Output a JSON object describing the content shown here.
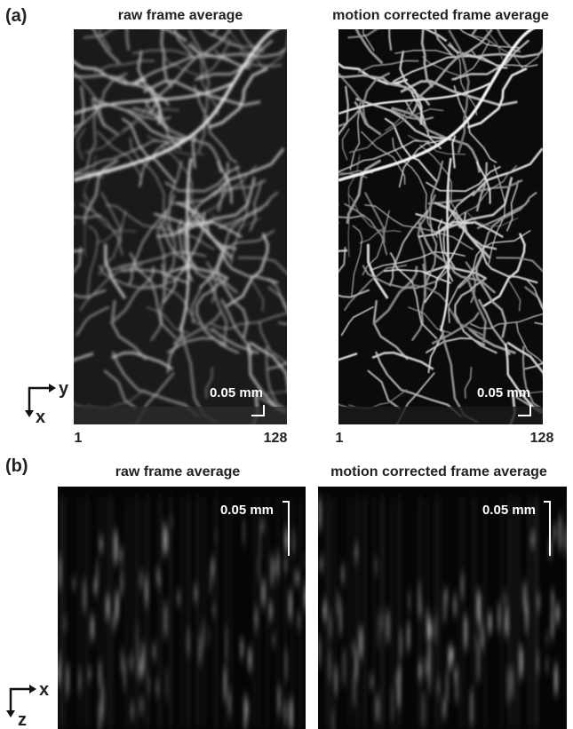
{
  "panel_a": {
    "label": "(a)",
    "images": [
      {
        "title": "raw frame average",
        "scale_bar": "0.05 mm",
        "axis_start": "1",
        "axis_end": "128"
      },
      {
        "title": "motion corrected frame average",
        "scale_bar": "0.05 mm",
        "axis_start": "1",
        "axis_end": "128"
      }
    ],
    "axes": {
      "horizontal": "y",
      "vertical": "x"
    }
  },
  "panel_b": {
    "label": "(b)",
    "images": [
      {
        "title": "raw frame average",
        "scale_bar": "0.05 mm"
      },
      {
        "title": "motion corrected frame average",
        "scale_bar": "0.05 mm"
      }
    ],
    "axes": {
      "horizontal": "x",
      "vertical": "z"
    }
  }
}
